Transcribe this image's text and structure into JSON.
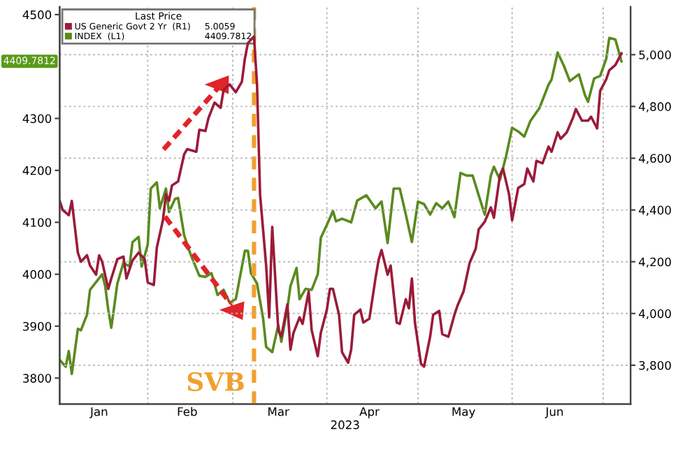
{
  "chart_data": {
    "type": "line",
    "xlabel": "2023",
    "legend_title": "Last Price",
    "legend": "top left",
    "grid": true,
    "xlim": [
      "2023-01-03",
      "2023-07-10"
    ],
    "xticks": [
      {
        "value": "2023-01-16",
        "label": "Jan"
      },
      {
        "value": "2023-02-01",
        "label": null
      },
      {
        "value": "2023-02-14",
        "label": "Feb"
      },
      {
        "value": "2023-03-01",
        "label": null
      },
      {
        "value": "2023-03-16",
        "label": "Mar"
      },
      {
        "value": "2023-04-01",
        "label": null
      },
      {
        "value": "2023-04-15",
        "label": "Apr"
      },
      {
        "value": "2023-05-01",
        "label": null
      },
      {
        "value": "2023-05-16",
        "label": "May"
      },
      {
        "value": "2023-06-01",
        "label": null
      },
      {
        "value": "2023-06-15",
        "label": "Jun"
      },
      {
        "value": "2023-07-01",
        "label": null
      }
    ],
    "ylim": [
      3750,
      4515
    ],
    "yticks": [
      3800,
      3900,
      4000,
      4100,
      4200,
      4300,
      4500
    ],
    "y2lim": [
      3650,
      5185
    ],
    "y2ticks": [
      {
        "value": 3800,
        "label": "3,800"
      },
      {
        "value": 4000,
        "label": "4,000"
      },
      {
        "value": 4200,
        "label": "4,200"
      },
      {
        "value": 4400,
        "label": "4,400"
      },
      {
        "value": 4600,
        "label": "4,600"
      },
      {
        "value": 4800,
        "label": "4,800"
      },
      {
        "value": 5000,
        "label": "5,000"
      }
    ],
    "ref_lines": [
      {
        "axis": "x",
        "value": "2023-03-08",
        "label": "SVB",
        "color": "#f0a030",
        "line_style": "dashed"
      }
    ],
    "annotations": [
      "5.0059",
      "4409.7812",
      "4409.7812"
    ],
    "series": [
      {
        "name": "US Generic Govt 2 Yr  (R1)",
        "color": "#9b1b3a",
        "axis": "y2",
        "x": [
          "2023-01-03",
          "2023-01-04",
          "2023-01-06",
          "2023-01-07",
          "2023-01-09",
          "2023-01-10",
          "2023-01-12",
          "2023-01-13",
          "2023-01-15",
          "2023-01-16",
          "2023-01-17",
          "2023-01-19",
          "2023-01-20",
          "2023-01-22",
          "2023-01-24",
          "2023-01-25",
          "2023-01-27",
          "2023-01-29",
          "2023-01-31",
          "2023-02-01",
          "2023-02-03",
          "2023-02-04",
          "2023-02-06",
          "2023-02-07",
          "2023-02-08",
          "2023-02-09",
          "2023-02-11",
          "2023-02-13",
          "2023-02-14",
          "2023-02-17",
          "2023-02-18",
          "2023-02-20",
          "2023-02-21",
          "2023-02-23",
          "2023-02-25",
          "2023-02-26",
          "2023-02-28",
          "2023-03-02",
          "2023-03-04",
          "2023-03-05",
          "2023-03-06",
          "2023-03-08",
          "2023-03-09",
          "2023-03-10",
          "2023-03-12",
          "2023-03-13",
          "2023-03-14",
          "2023-03-16",
          "2023-03-17",
          "2023-03-19",
          "2023-03-20",
          "2023-03-21",
          "2023-03-23",
          "2023-03-24",
          "2023-03-26",
          "2023-03-27",
          "2023-03-29",
          "2023-03-30",
          "2023-04-01",
          "2023-04-02",
          "2023-04-03",
          "2023-04-05",
          "2023-04-06",
          "2023-04-08",
          "2023-04-09",
          "2023-04-10",
          "2023-04-12",
          "2023-04-13",
          "2023-04-15",
          "2023-04-17",
          "2023-04-18",
          "2023-04-19",
          "2023-04-21",
          "2023-04-22",
          "2023-04-24",
          "2023-04-25",
          "2023-04-27",
          "2023-04-28",
          "2023-04-29",
          "2023-04-30",
          "2023-05-02",
          "2023-05-03",
          "2023-05-05",
          "2023-05-06",
          "2023-05-08",
          "2023-05-09",
          "2023-05-11",
          "2023-05-13",
          "2023-05-14",
          "2023-05-16",
          "2023-05-18",
          "2023-05-20",
          "2023-05-21",
          "2023-05-23",
          "2023-05-25",
          "2023-05-26",
          "2023-05-28",
          "2023-05-29",
          "2023-05-31",
          "2023-06-01",
          "2023-06-03",
          "2023-06-05",
          "2023-06-06",
          "2023-06-08",
          "2023-06-09",
          "2023-06-11",
          "2023-06-13",
          "2023-06-14",
          "2023-06-16",
          "2023-06-17",
          "2023-06-19",
          "2023-06-21",
          "2023-06-22",
          "2023-06-24",
          "2023-06-26",
          "2023-06-27",
          "2023-06-29",
          "2023-06-30",
          "2023-07-02",
          "2023-07-03",
          "2023-07-05",
          "2023-07-07"
        ],
        "values": [
          4435,
          4400,
          4380,
          4435,
          4235,
          4200,
          4225,
          4185,
          4150,
          4225,
          4200,
          4095,
          4135,
          4210,
          4220,
          4135,
          4205,
          4235,
          4210,
          4120,
          4110,
          4255,
          4360,
          4460,
          4435,
          4495,
          4510,
          4615,
          4635,
          4625,
          4710,
          4705,
          4755,
          4815,
          4795,
          4865,
          4885,
          4855,
          4895,
          4985,
          5045,
          5070,
          4885,
          4460,
          4185,
          3985,
          4335,
          3935,
          3910,
          4035,
          3860,
          3925,
          3985,
          3960,
          4085,
          3935,
          3835,
          3925,
          4015,
          4095,
          4095,
          3995,
          3850,
          3810,
          3860,
          3995,
          4015,
          3965,
          3980,
          4135,
          4205,
          4245,
          4150,
          4185,
          3965,
          3960,
          4055,
          4020,
          4135,
          3965,
          3805,
          3795,
          3910,
          3995,
          4010,
          3920,
          3910,
          3995,
          4030,
          4085,
          4195,
          4250,
          4325,
          4355,
          4410,
          4370,
          4535,
          4560,
          4460,
          4360,
          4485,
          4500,
          4560,
          4510,
          4590,
          4580,
          4645,
          4625,
          4700,
          4675,
          4700,
          4755,
          4790,
          4745,
          4745,
          4760,
          4715,
          4860,
          4905,
          4940,
          4960,
          5005
        ]
      },
      {
        "name": "INDEX  (L1)",
        "color": "#5a8a1e",
        "axis": "y",
        "x": [
          "2023-01-03",
          "2023-01-05",
          "2023-01-06",
          "2023-01-07",
          "2023-01-09",
          "2023-01-10",
          "2023-01-12",
          "2023-01-13",
          "2023-01-15",
          "2023-01-17",
          "2023-01-18",
          "2023-01-19",
          "2023-01-20",
          "2023-01-22",
          "2023-01-24",
          "2023-01-26",
          "2023-01-27",
          "2023-01-29",
          "2023-01-30",
          "2023-02-01",
          "2023-02-02",
          "2023-02-04",
          "2023-02-05",
          "2023-02-07",
          "2023-02-08",
          "2023-02-10",
          "2023-02-11",
          "2023-02-13",
          "2023-02-15",
          "2023-02-18",
          "2023-02-20",
          "2023-02-22",
          "2023-02-24",
          "2023-02-26",
          "2023-02-28",
          "2023-03-02",
          "2023-03-05",
          "2023-03-06",
          "2023-03-07",
          "2023-03-09",
          "2023-03-11",
          "2023-03-12",
          "2023-03-14",
          "2023-03-16",
          "2023-03-17",
          "2023-03-19",
          "2023-03-20",
          "2023-03-22",
          "2023-03-23",
          "2023-03-25",
          "2023-03-27",
          "2023-03-29",
          "2023-03-30",
          "2023-04-01",
          "2023-04-03",
          "2023-04-04",
          "2023-04-06",
          "2023-04-09",
          "2023-04-11",
          "2023-04-14",
          "2023-04-17",
          "2023-04-19",
          "2023-04-21",
          "2023-04-23",
          "2023-04-25",
          "2023-04-27",
          "2023-04-29",
          "2023-05-01",
          "2023-05-03",
          "2023-05-05",
          "2023-05-07",
          "2023-05-09",
          "2023-05-11",
          "2023-05-13",
          "2023-05-15",
          "2023-05-17",
          "2023-05-19",
          "2023-05-21",
          "2023-05-23",
          "2023-05-25",
          "2023-05-26",
          "2023-05-28",
          "2023-05-30",
          "2023-06-01",
          "2023-06-03",
          "2023-06-05",
          "2023-06-07",
          "2023-06-10",
          "2023-06-13",
          "2023-06-14",
          "2023-06-16",
          "2023-06-18",
          "2023-06-20",
          "2023-06-23",
          "2023-06-25",
          "2023-06-26",
          "2023-06-28",
          "2023-06-30",
          "2023-07-02",
          "2023-07-03",
          "2023-07-05",
          "2023-07-07"
        ],
        "values": [
          3835,
          3822,
          3852,
          3808,
          3895,
          3892,
          3922,
          3970,
          3985,
          4000,
          3977,
          3932,
          3897,
          3982,
          4022,
          4015,
          4062,
          4072,
          4015,
          4057,
          4165,
          4177,
          4127,
          4165,
          4120,
          4145,
          4147,
          4075,
          4040,
          3997,
          3995,
          4002,
          3960,
          3970,
          3945,
          3952,
          4045,
          4045,
          4002,
          3982,
          3915,
          3860,
          3850,
          3902,
          3870,
          3935,
          3977,
          4012,
          3952,
          3972,
          3970,
          4000,
          4070,
          4095,
          4122,
          4102,
          4107,
          4100,
          4142,
          4152,
          4127,
          4140,
          4060,
          4165,
          4165,
          4115,
          4062,
          4140,
          4135,
          4115,
          4137,
          4127,
          4140,
          4110,
          4195,
          4190,
          4190,
          4152,
          4115,
          4190,
          4207,
          4182,
          4227,
          4282,
          4275,
          4265,
          4295,
          4320,
          4365,
          4375,
          4427,
          4402,
          4372,
          4385,
          4345,
          4332,
          4377,
          4382,
          4415,
          4455,
          4452,
          4410
        ]
      }
    ]
  }
}
